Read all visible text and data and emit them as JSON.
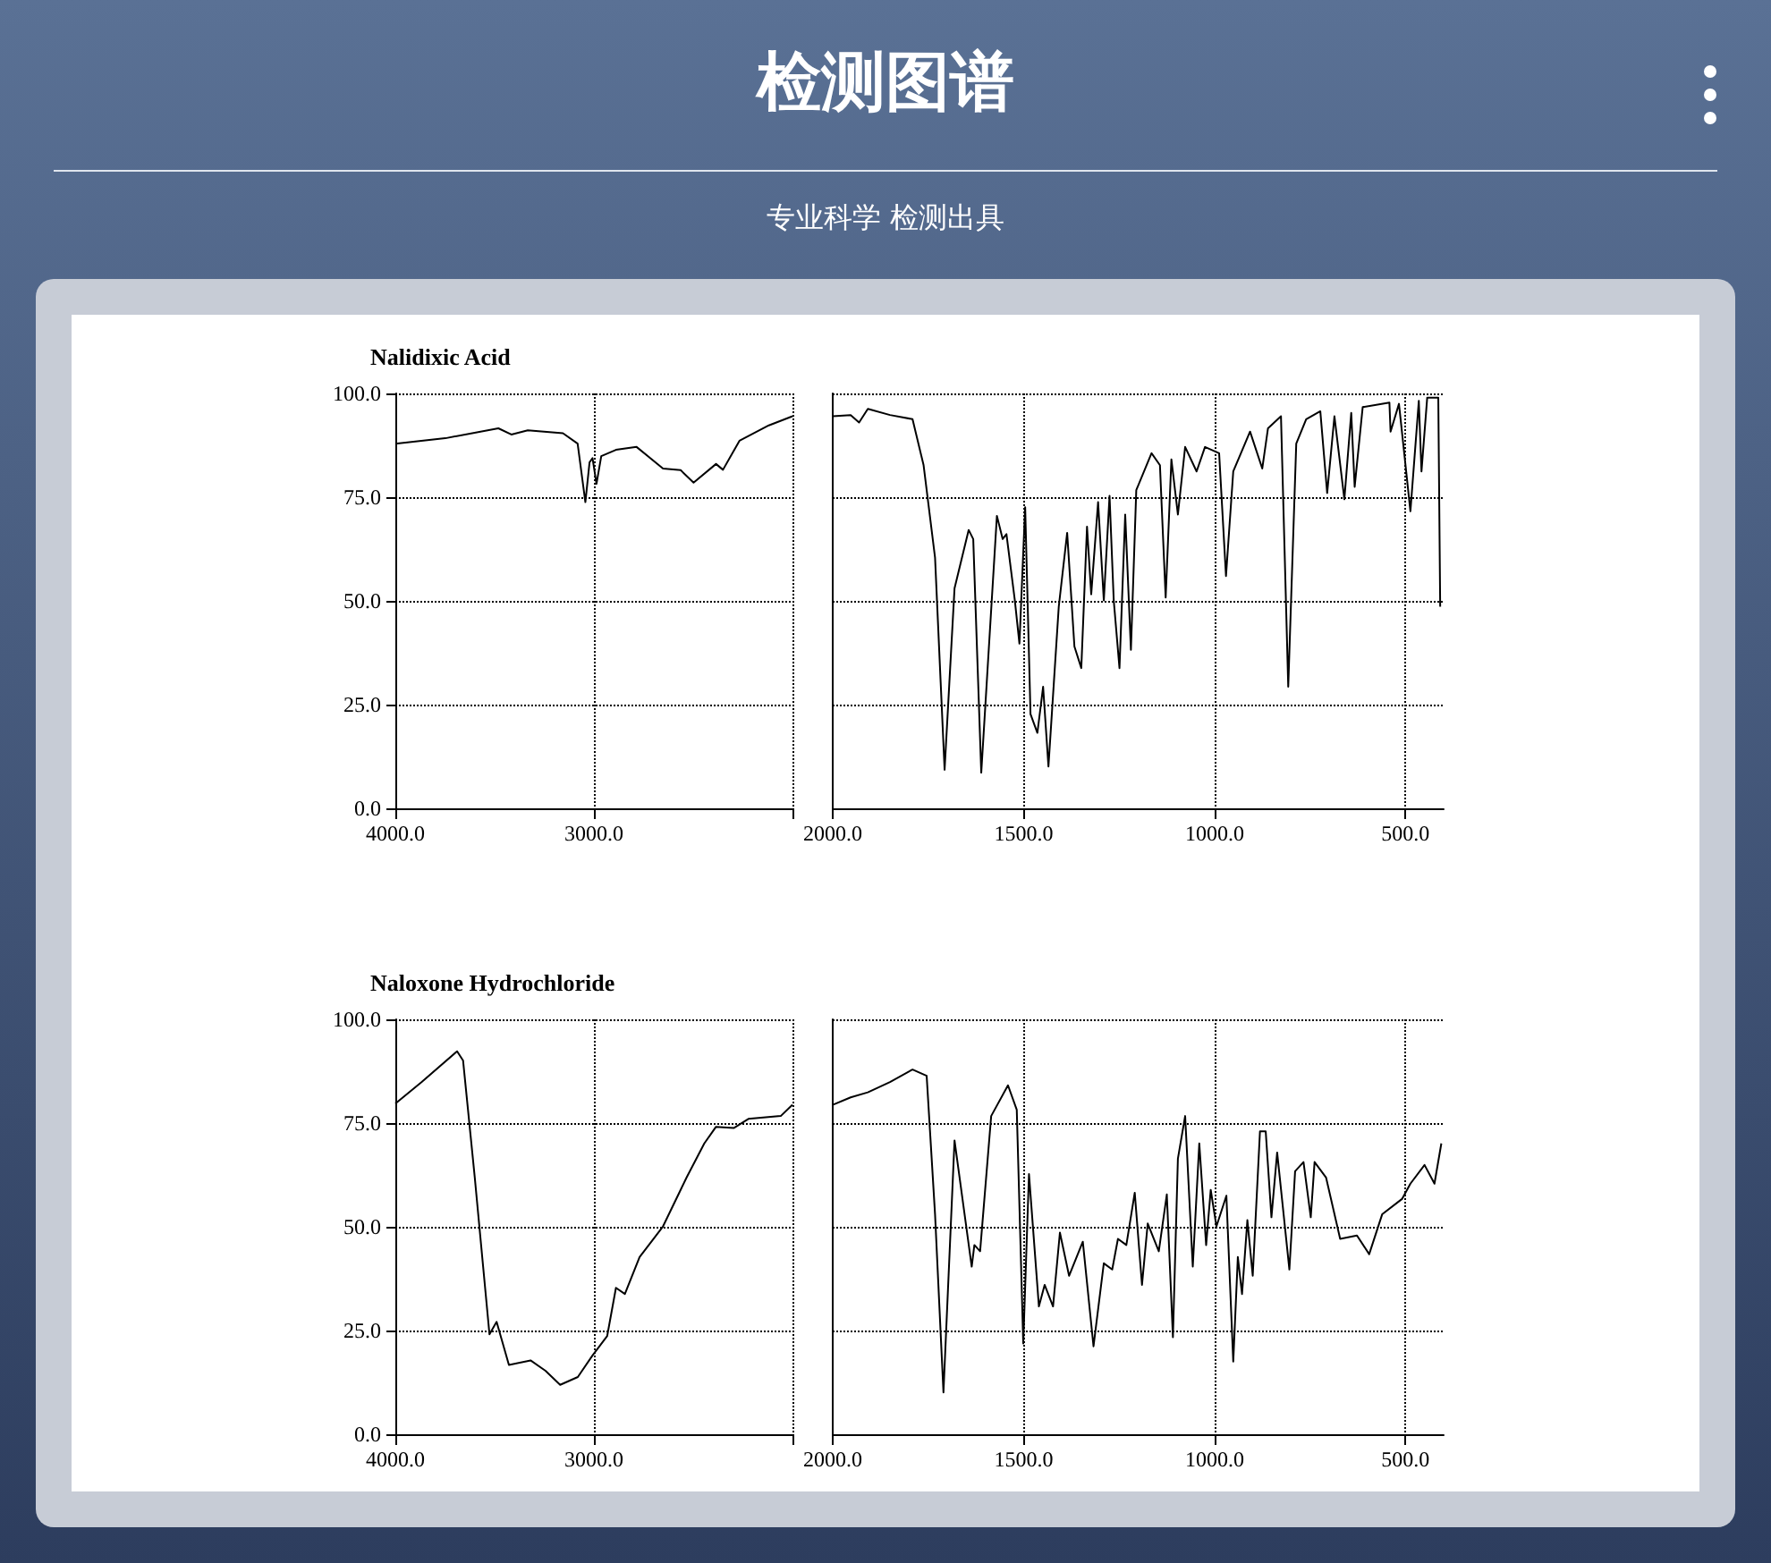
{
  "chart_data": [
    {
      "type": "line",
      "title": "Nalidixic Acid",
      "annotations": [
        "检测图谱",
        "专业科学  检测出具"
      ],
      "xlim": [
        4000,
        2000
      ],
      "xticks": [
        {
          "value": 4000,
          "label": "4000.0"
        },
        {
          "value": 3000,
          "label": "3000.0"
        },
        {
          "value": 2000,
          "label": null
        }
      ],
      "ylim": [
        0,
        100
      ],
      "yticks": [
        {
          "value": 0,
          "label": "0.0"
        },
        {
          "value": 25,
          "label": "25.0"
        },
        {
          "value": 50,
          "label": "50.0"
        },
        {
          "value": 75,
          "label": "75.0"
        },
        {
          "value": 100,
          "label": "100.0"
        }
      ],
      "grid": true,
      "series": [
        {
          "color": "#000000",
          "x": [
            4000,
            3748,
            3481,
            3416,
            3333,
            3156,
            3082,
            3043,
            3022,
            3007,
            2987,
            2963,
            2889,
            2785,
            2652,
            2563,
            2498,
            2385,
            2350,
            2267,
            2119,
            2000
          ],
          "values": [
            87.9,
            89.2,
            91.6,
            90.1,
            91.1,
            90.4,
            87.9,
            73.8,
            83.4,
            84.4,
            78.2,
            84.9,
            86.4,
            87.1,
            81.9,
            81.5,
            78.5,
            83.0,
            81.6,
            88.6,
            92.3,
            94.5
          ]
        }
      ]
    },
    {
      "type": "line",
      "tick_labels": "x",
      "xlim": [
        2000,
        400
      ],
      "xticks": [
        {
          "value": 2000,
          "label": "2000.0"
        },
        {
          "value": 1500,
          "label": "1500.0"
        },
        {
          "value": 1000,
          "label": "1000.0"
        },
        {
          "value": 500,
          "label": "500.0"
        }
      ],
      "ylim": [
        0,
        100
      ],
      "yticks": [
        0,
        25,
        50,
        75,
        100
      ],
      "grid": true,
      "series": [
        {
          "color": "#000000",
          "x": [
            2000,
            1953,
            1931,
            1908,
            1850,
            1791,
            1762,
            1732,
            1707,
            1681,
            1644,
            1632,
            1611,
            1570,
            1555,
            1545,
            1523,
            1511,
            1496,
            1482,
            1464,
            1449,
            1435,
            1408,
            1386,
            1367,
            1349,
            1334,
            1323,
            1305,
            1290,
            1275,
            1264,
            1249,
            1234,
            1219,
            1205,
            1165,
            1143,
            1128,
            1113,
            1096,
            1077,
            1047,
            1025,
            988,
            970,
            951,
            907,
            875,
            860,
            826,
            807,
            786,
            760,
            723,
            705,
            686,
            660,
            642,
            633,
            612,
            542,
            539,
            517,
            487,
            465,
            458,
            443,
            414,
            409
          ],
          "values": [
            94.5,
            94.8,
            93.0,
            96.3,
            94.8,
            93.8,
            82.7,
            60.4,
            9.3,
            53.0,
            67.1,
            64.9,
            8.6,
            70.5,
            64.9,
            66.1,
            50.1,
            39.7,
            72.6,
            22.7,
            18.2,
            29.3,
            10.1,
            48.6,
            66.4,
            39.0,
            33.8,
            67.9,
            51.6,
            73.8,
            50.1,
            75.3,
            50.1,
            33.8,
            70.8,
            38.2,
            76.7,
            85.6,
            82.7,
            50.8,
            84.1,
            70.8,
            87.1,
            81.2,
            87.1,
            85.6,
            56.0,
            81.2,
            90.8,
            81.9,
            91.6,
            94.5,
            29.3,
            87.9,
            93.8,
            95.7,
            76.0,
            94.5,
            74.5,
            95.3,
            77.5,
            96.7,
            97.8,
            90.8,
            97.5,
            71.6,
            98.2,
            81.2,
            99.0,
            99.0,
            48.6
          ]
        }
      ]
    },
    {
      "type": "line",
      "title": "Naloxone Hydrochloride",
      "xlim": [
        4000,
        2000
      ],
      "xticks": [
        {
          "value": 4000,
          "label": "4000.0"
        },
        {
          "value": 3000,
          "label": "3000.0"
        },
        {
          "value": 2000,
          "label": null
        }
      ],
      "ylim": [
        0,
        100
      ],
      "yticks": [
        {
          "value": 0,
          "label": "0.0"
        },
        {
          "value": 25,
          "label": "25.0"
        },
        {
          "value": 50,
          "label": "50.0"
        },
        {
          "value": 75,
          "label": "75.0"
        },
        {
          "value": 100,
          "label": "100.0"
        }
      ],
      "grid": true,
      "series": [
        {
          "color": "#000000",
          "x": [
            4000,
            3867,
            3689,
            3659,
            3600,
            3526,
            3490,
            3428,
            3319,
            3244,
            3170,
            3081,
            3007,
            2933,
            2889,
            2844,
            2770,
            2652,
            2533,
            2444,
            2385,
            2296,
            2222,
            2059,
            2000
          ],
          "values": [
            79.7,
            84.9,
            92.3,
            90.1,
            61.9,
            24.1,
            27.1,
            16.7,
            17.8,
            15.3,
            11.9,
            13.8,
            19.0,
            23.7,
            35.3,
            33.8,
            42.7,
            50.1,
            61.9,
            70.1,
            74.1,
            73.8,
            76.0,
            76.7,
            79.4
          ]
        }
      ]
    },
    {
      "type": "line",
      "tick_labels": "x",
      "xlim": [
        2000,
        400
      ],
      "xticks": [
        {
          "value": 2000,
          "label": "2000.0"
        },
        {
          "value": 1500,
          "label": "1500.0"
        },
        {
          "value": 1000,
          "label": "1000.0"
        },
        {
          "value": 500,
          "label": "500.0"
        }
      ],
      "ylim": [
        0,
        100
      ],
      "yticks": [
        0,
        25,
        50,
        75,
        100
      ],
      "grid": true,
      "series": [
        {
          "color": "#000000",
          "x": [
            2000,
            1953,
            1908,
            1850,
            1791,
            1754,
            1732,
            1710,
            1681,
            1636,
            1629,
            1614,
            1585,
            1541,
            1518,
            1501,
            1486,
            1460,
            1445,
            1423,
            1405,
            1381,
            1345,
            1317,
            1290,
            1268,
            1253,
            1231,
            1209,
            1190,
            1175,
            1146,
            1125,
            1109,
            1096,
            1077,
            1057,
            1040,
            1022,
            1010,
            995,
            969,
            951,
            939,
            928,
            914,
            900,
            881,
            866,
            851,
            836,
            804,
            789,
            767,
            748,
            738,
            708,
            671,
            627,
            595,
            561,
            509,
            487,
            450,
            424,
            406
          ],
          "values": [
            79.4,
            81.2,
            82.4,
            84.9,
            87.9,
            86.4,
            53.0,
            10.1,
            70.8,
            40.4,
            45.6,
            44.1,
            76.7,
            84.1,
            78.2,
            21.9,
            62.7,
            30.8,
            36.0,
            30.8,
            48.6,
            38.2,
            46.4,
            21.2,
            41.2,
            39.7,
            47.1,
            45.6,
            58.2,
            36.0,
            50.8,
            44.1,
            57.8,
            23.4,
            66.4,
            76.7,
            40.4,
            70.1,
            45.6,
            58.9,
            50.1,
            57.5,
            17.5,
            42.7,
            33.8,
            51.6,
            38.2,
            73.0,
            73.0,
            52.3,
            67.9,
            39.7,
            63.4,
            65.6,
            52.3,
            65.6,
            61.9,
            47.1,
            47.9,
            43.4,
            53.0,
            56.7,
            60.4,
            64.9,
            60.4,
            70.1
          ]
        }
      ]
    }
  ]
}
